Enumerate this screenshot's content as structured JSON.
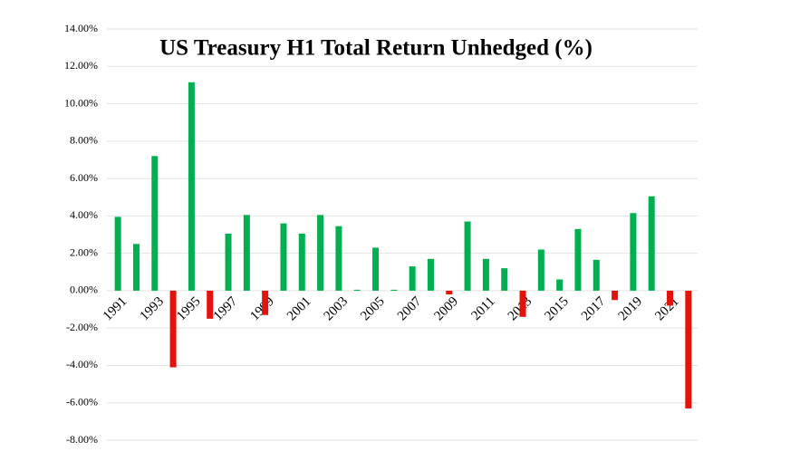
{
  "chart_data": {
    "type": "bar",
    "title": "US Treasury H1 Total Return Unhedged (%)",
    "categories": [
      "1991",
      null,
      "1993",
      null,
      "1995",
      null,
      "1997",
      null,
      "1999",
      null,
      "2001",
      null,
      "2003",
      null,
      "2005",
      null,
      "2007",
      null,
      "2009",
      null,
      "2011",
      null,
      "2013",
      null,
      "2015",
      null,
      "2017",
      null,
      "2019",
      null,
      "2021",
      null
    ],
    "values": [
      3.95,
      2.5,
      7.2,
      -4.1,
      11.15,
      -1.5,
      3.05,
      4.05,
      -1.3,
      3.6,
      3.05,
      4.05,
      3.45,
      0.05,
      2.3,
      0.05,
      1.3,
      1.7,
      -0.2,
      3.7,
      1.7,
      1.2,
      -1.4,
      2.2,
      0.6,
      3.3,
      1.65,
      -0.5,
      4.15,
      5.05,
      -0.8,
      -6.3
    ],
    "positive_color": "#00b050",
    "negative_color": "#e3120b",
    "ylim": [
      -8,
      14
    ],
    "yticks": [
      {
        "value": -8,
        "label": "-8.00%"
      },
      {
        "value": -6,
        "label": "-6.00%"
      },
      {
        "value": -4,
        "label": "-4.00%"
      },
      {
        "value": -2,
        "label": "-2.00%"
      },
      {
        "value": 0,
        "label": "0.00%"
      },
      {
        "value": 2,
        "label": "2.00%"
      },
      {
        "value": 4,
        "label": "4.00%"
      },
      {
        "value": 6,
        "label": "6.00%"
      },
      {
        "value": 8,
        "label": "8.00%"
      },
      {
        "value": 10,
        "label": "10.00%"
      },
      {
        "value": 12,
        "label": "12.00%"
      },
      {
        "value": 14,
        "label": "14.00%"
      }
    ],
    "grid": true
  }
}
